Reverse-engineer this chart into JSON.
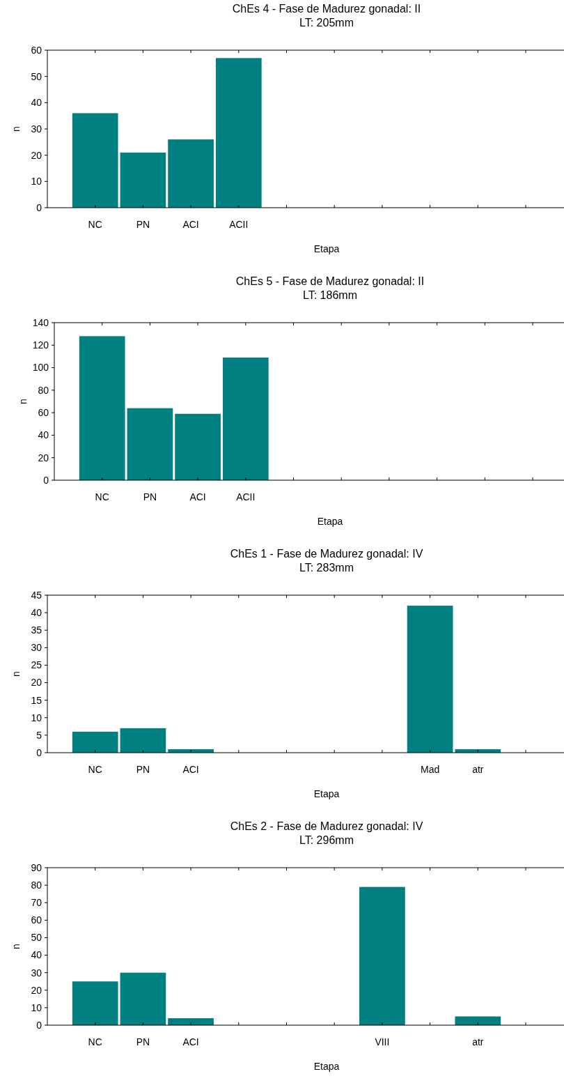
{
  "chart_data": [
    {
      "type": "bar",
      "title": "ChEs 4 - Fase de Madurez gonadal: II",
      "subtitle": "LT: 205mm",
      "xlabel": "Etapa",
      "ylabel": "n",
      "categories": [
        "NC",
        "PN",
        "ACI",
        "ACII",
        null,
        null,
        null,
        null,
        null,
        null
      ],
      "values": [
        36,
        21,
        26,
        57,
        null,
        null,
        null,
        null,
        null,
        null
      ],
      "color": "#008080",
      "ylim": [
        0,
        60
      ],
      "yticks": [
        0,
        10,
        20,
        30,
        40,
        50,
        60
      ],
      "grid": false
    },
    {
      "type": "bar",
      "title": "ChEs 5 - Fase de Madurez gonadal: II",
      "subtitle": "LT: 186mm",
      "xlabel": "Etapa",
      "ylabel": "n",
      "categories": [
        "NC",
        "PN",
        "ACI",
        "ACII",
        null,
        null,
        null,
        null,
        null,
        null
      ],
      "values": [
        128,
        64,
        59,
        109,
        null,
        null,
        null,
        null,
        null,
        null
      ],
      "color": "#008080",
      "ylim": [
        0,
        140
      ],
      "yticks": [
        0,
        20,
        40,
        60,
        80,
        100,
        120,
        140
      ],
      "grid": false
    },
    {
      "type": "bar",
      "title": "ChEs 1 - Fase de Madurez gonadal: IV",
      "subtitle": "LT: 283mm",
      "xlabel": "Etapa",
      "ylabel": "n",
      "categories": [
        "NC",
        "PN",
        "ACI",
        null,
        null,
        null,
        null,
        "Mad",
        "atr",
        null
      ],
      "values": [
        6,
        7,
        1,
        0,
        0,
        0,
        0,
        42,
        1,
        null
      ],
      "color": "#008080",
      "ylim": [
        0,
        45
      ],
      "yticks": [
        0,
        5,
        10,
        15,
        20,
        25,
        30,
        35,
        40,
        45
      ],
      "grid": false
    },
    {
      "type": "bar",
      "title": "ChEs 2 - Fase de Madurez gonadal: IV",
      "subtitle": "LT: 296mm",
      "xlabel": "Etapa",
      "ylabel": "n",
      "categories": [
        "NC",
        "PN",
        "ACI",
        null,
        null,
        null,
        "VIII",
        null,
        "atr",
        null
      ],
      "values": [
        25,
        30,
        4,
        0,
        0,
        0,
        79,
        0,
        5,
        null
      ],
      "color": "#008080",
      "ylim": [
        0,
        90
      ],
      "yticks": [
        0,
        10,
        20,
        30,
        40,
        50,
        60,
        70,
        80,
        90
      ],
      "grid": false
    }
  ]
}
